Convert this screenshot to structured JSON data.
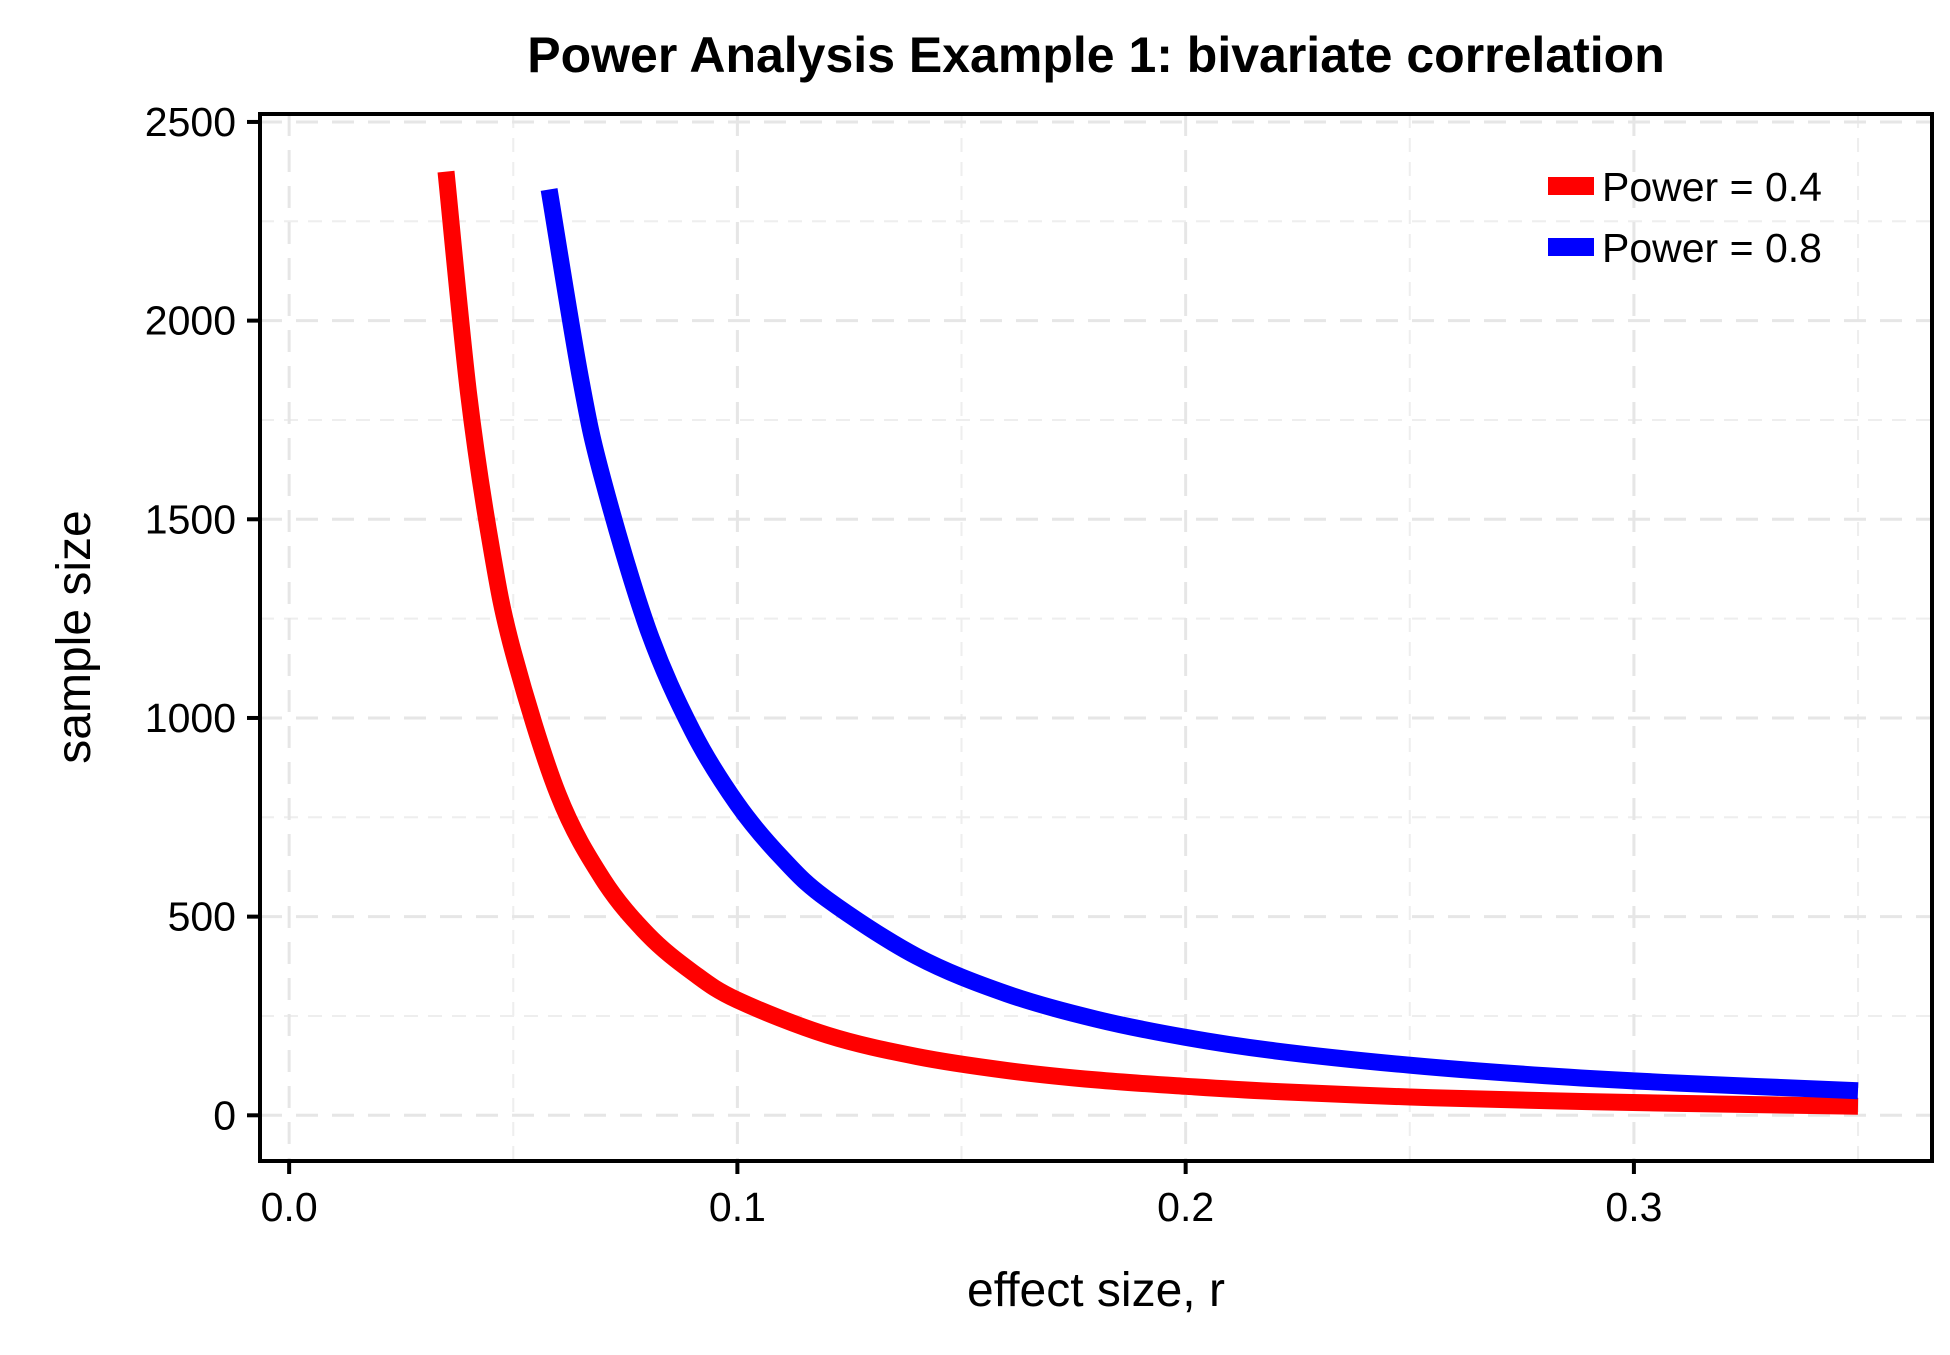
{
  "chart_data": {
    "type": "line",
    "title": "Power Analysis Example 1: bivariate correlation",
    "xlabel": "effect size, r",
    "ylabel": "sample size",
    "xlim": [
      -0.0065,
      0.3665
    ],
    "ylim": [
      -115,
      2520
    ],
    "x_ticks": [
      0.0,
      0.1,
      0.2,
      0.3
    ],
    "x_tick_labels": [
      "0.0",
      "0.1",
      "0.2",
      "0.3"
    ],
    "y_ticks": [
      0,
      500,
      1000,
      1500,
      2000,
      2500
    ],
    "y_tick_labels": [
      "0",
      "500",
      "1000",
      "1500",
      "2000",
      "2500"
    ],
    "grid": true,
    "grid_style": "dashed",
    "legend_position": "top-right",
    "series": [
      {
        "name": "Power = 0.4",
        "color": "#ff0000",
        "x": [
          0.035,
          0.04,
          0.045,
          0.05,
          0.06,
          0.07,
          0.08,
          0.09,
          0.1,
          0.12,
          0.14,
          0.16,
          0.18,
          0.2,
          0.22,
          0.25,
          0.28,
          0.31,
          0.35
        ],
        "y": [
          2375,
          1820,
          1435,
          1165,
          808,
          594,
          455,
          360,
          290,
          202,
          148,
          113,
          89,
          73,
          60,
          46,
          37,
          30,
          23
        ]
      },
      {
        "name": "Power = 0.8",
        "color": "#0000ff",
        "x": [
          0.058,
          0.065,
          0.07,
          0.08,
          0.09,
          0.1,
          0.11,
          0.12,
          0.14,
          0.16,
          0.18,
          0.2,
          0.22,
          0.25,
          0.28,
          0.31,
          0.35
        ],
        "y": [
          2330,
          1855,
          1600,
          1225,
          967,
          783,
          647,
          544,
          400,
          306,
          242,
          196,
          162,
          126,
          100,
          81,
          62
        ]
      }
    ]
  }
}
